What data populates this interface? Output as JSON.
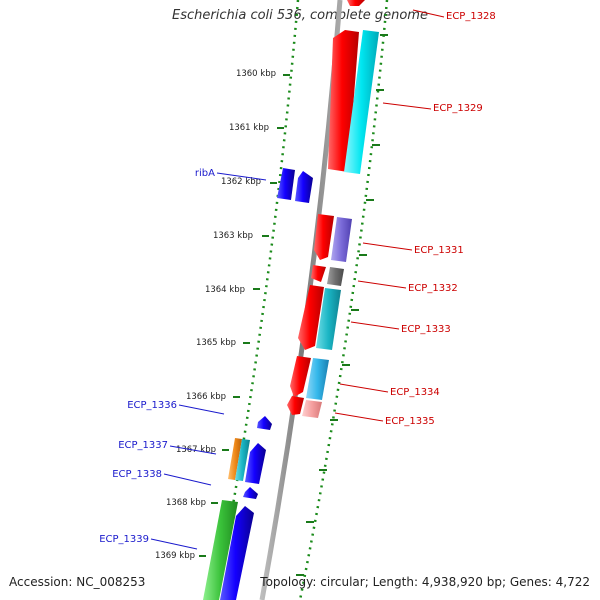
{
  "title": "Escherichia coli 536, complete genome",
  "footer": {
    "accession_label": "Accession:",
    "accession": "NC_008253",
    "topology_label": "Topology:",
    "topology": "circular",
    "length_label": "Length:",
    "length": "4,938,920 bp",
    "genes_label": "Genes:",
    "genes": "4,722"
  },
  "colors": {
    "forward": "#1400ff",
    "reverse": "#ff0000",
    "label_forward": "#1a1acc",
    "label_reverse": "#cc0000",
    "backbone": "#888888",
    "ticks": "#1a7a1a",
    "cog_cyan": "#00d7e6",
    "cog_teal": "#1ab5c4",
    "cog_sky": "#33b7ea",
    "cog_purple": "#7a6ad8",
    "cog_grey": "#6e6e6e",
    "cog_pink": "#f5a0a0",
    "cog_orange": "#f08a1a",
    "cog_green": "#3ac23a"
  },
  "scale_labels": [
    "1360 kbp",
    "1361 kbp",
    "1362 kbp",
    "1363 kbp",
    "1364 kbp",
    "1365 kbp",
    "1366 kbp",
    "1367 kbp",
    "1368 kbp",
    "1369 kbp"
  ],
  "gene_labels": {
    "ECP_1328": "ECP_1328",
    "ECP_1329": "ECP_1329",
    "ribA": "ribA",
    "ECP_1331": "ECP_1331",
    "ECP_1332": "ECP_1332",
    "ECP_1333": "ECP_1333",
    "ECP_1334": "ECP_1334",
    "ECP_1335": "ECP_1335",
    "ECP_1336": "ECP_1336",
    "ECP_1337": "ECP_1337",
    "ECP_1338": "ECP_1338",
    "ECP_1339": "ECP_1339"
  }
}
